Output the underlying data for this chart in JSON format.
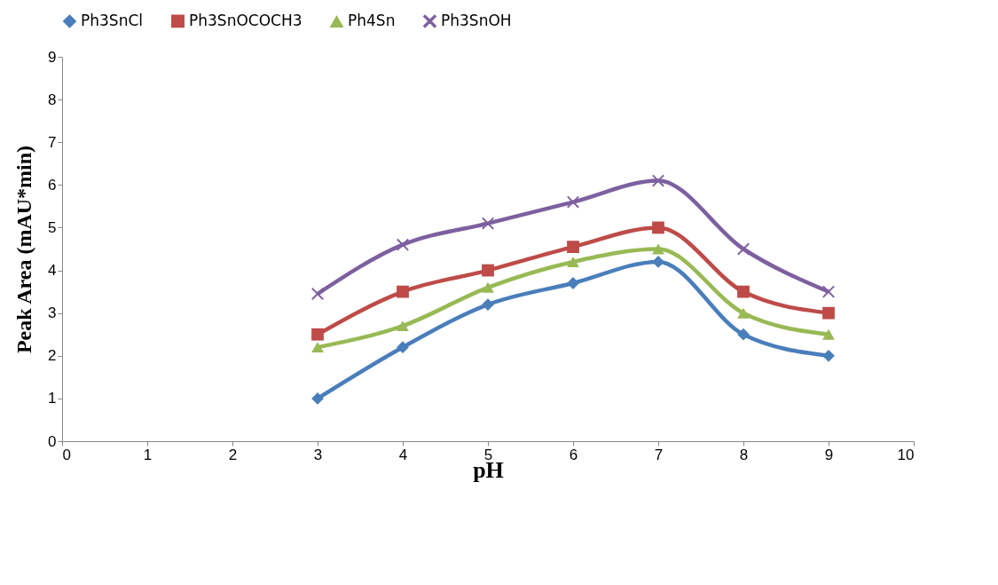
{
  "chart_data": {
    "type": "line",
    "xlabel": "pH",
    "ylabel": "Peak Area (mAU*min)",
    "x": [
      3,
      4,
      5,
      6,
      7,
      8,
      9
    ],
    "series": [
      {
        "name": "Ph3SnCl",
        "color": "#4a7ebb",
        "marker": "diamond",
        "values": [
          1.0,
          2.2,
          3.2,
          3.7,
          4.2,
          2.5,
          2.0
        ]
      },
      {
        "name": "Ph3SnOCOCH3",
        "color": "#be4b48",
        "marker": "square",
        "values": [
          2.5,
          3.5,
          4.0,
          4.55,
          5.0,
          3.5,
          3.0
        ]
      },
      {
        "name": "Ph4Sn",
        "color": "#98b954",
        "marker": "triangle",
        "values": [
          2.2,
          2.7,
          3.6,
          4.2,
          4.5,
          3.0,
          2.5
        ]
      },
      {
        "name": "Ph3SnOH",
        "color": "#7d60a0",
        "marker": "cross",
        "values": [
          3.45,
          4.6,
          5.1,
          5.6,
          6.1,
          4.5,
          3.5
        ]
      }
    ],
    "xlim": [
      0,
      10
    ],
    "xticks": [
      0,
      1,
      2,
      3,
      4,
      5,
      6,
      7,
      8,
      9,
      10
    ],
    "ylim": [
      0,
      9
    ],
    "yticks": [
      0,
      1,
      2,
      3,
      4,
      5,
      6,
      7,
      8,
      9
    ],
    "grid": false,
    "legend": "top",
    "line_style": "solid"
  }
}
